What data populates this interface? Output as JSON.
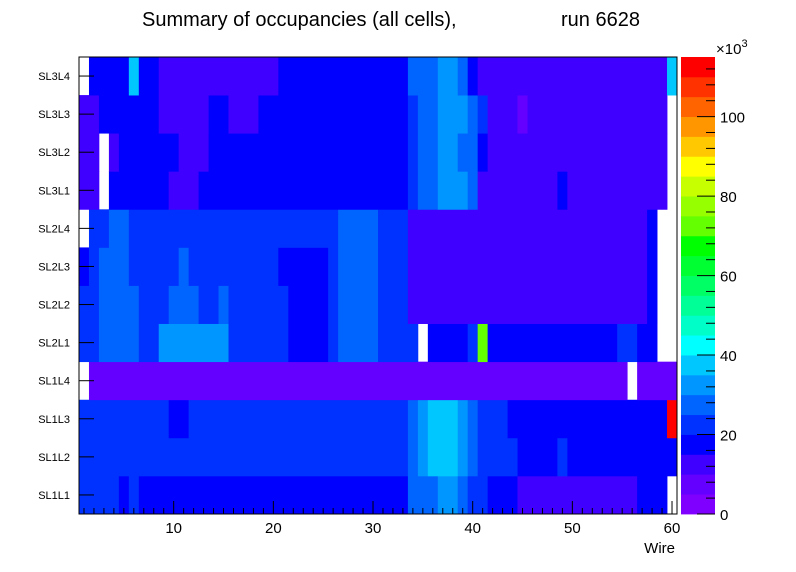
{
  "chart_data": {
    "type": "heatmap",
    "title": "Summary of occupancies (all cells),",
    "title_run": "run 6628",
    "xlabel": "Wire",
    "ylabel": "",
    "x_range": [
      0.5,
      60.5
    ],
    "x_ticks": [
      10,
      20,
      30,
      40,
      50,
      60
    ],
    "rows": [
      "SL1L1",
      "SL1L2",
      "SL1L3",
      "SL1L4",
      "SL2L1",
      "SL2L2",
      "SL2L3",
      "SL2L4",
      "SL3L1",
      "SL3L2",
      "SL3L3",
      "SL3L4"
    ],
    "z_range": [
      0,
      115000
    ],
    "z_exponent_label": "×10",
    "z_exponent": "3",
    "z_ticks": [
      0,
      20,
      40,
      60,
      80,
      100
    ],
    "palette": [
      "#8000ff",
      "#6400ff",
      "#4000ff",
      "#0000ff",
      "#0032ff",
      "#0064ff",
      "#0096ff",
      "#00c8ff",
      "#00ffff",
      "#00ffc8",
      "#00ff96",
      "#00ff64",
      "#00ff32",
      "#00ff00",
      "#64ff00",
      "#96ff00",
      "#c8ff00",
      "#ffff00",
      "#ffc800",
      "#ff9600",
      "#ff6400",
      "#ff3200",
      "#ff0000"
    ],
    "segments": {
      "SL1L1": [
        [
          1,
          4,
          21000
        ],
        [
          5,
          5,
          17000
        ],
        [
          6,
          6,
          21000
        ],
        [
          7,
          33,
          16000
        ],
        [
          34,
          36,
          26000
        ],
        [
          37,
          38,
          30000
        ],
        [
          39,
          39,
          26000
        ],
        [
          40,
          41,
          21000
        ],
        [
          42,
          44,
          16000
        ],
        [
          45,
          56,
          10000
        ],
        [
          57,
          59,
          17000
        ]
      ],
      "SL1L2": [
        [
          1,
          10,
          21000
        ],
        [
          11,
          33,
          21000
        ],
        [
          34,
          34,
          28000
        ],
        [
          35,
          35,
          33000
        ],
        [
          36,
          38,
          38000
        ],
        [
          39,
          39,
          33000
        ],
        [
          40,
          40,
          28000
        ],
        [
          41,
          44,
          21000
        ],
        [
          45,
          48,
          17000
        ],
        [
          49,
          49,
          21000
        ],
        [
          50,
          60,
          17000
        ]
      ],
      "SL1L3": [
        [
          1,
          9,
          21000
        ],
        [
          10,
          11,
          17000
        ],
        [
          12,
          33,
          21000
        ],
        [
          34,
          34,
          28000
        ],
        [
          35,
          35,
          33000
        ],
        [
          36,
          38,
          38000
        ],
        [
          39,
          39,
          33000
        ],
        [
          40,
          40,
          28000
        ],
        [
          41,
          43,
          21000
        ],
        [
          44,
          59,
          17000
        ],
        [
          60,
          60,
          114000
        ]
      ],
      "SL1L4": [
        [
          1,
          1,
          null
        ],
        [
          2,
          55,
          9000
        ],
        [
          56,
          56,
          null
        ],
        [
          57,
          60,
          9000
        ]
      ],
      "SL2L1": [
        [
          1,
          2,
          21000
        ],
        [
          3,
          6,
          28000
        ],
        [
          7,
          8,
          21000
        ],
        [
          9,
          15,
          32000
        ],
        [
          16,
          21,
          21000
        ],
        [
          22,
          25,
          17000
        ],
        [
          26,
          26,
          21000
        ],
        [
          27,
          30,
          28000
        ],
        [
          31,
          34,
          21000
        ],
        [
          35,
          35,
          null
        ],
        [
          36,
          39,
          17000
        ],
        [
          40,
          40,
          21000
        ],
        [
          41,
          41,
          74000
        ],
        [
          42,
          54,
          17000
        ],
        [
          55,
          56,
          21000
        ],
        [
          57,
          58,
          17000
        ],
        [
          59,
          60,
          null
        ]
      ],
      "SL2L2": [
        [
          1,
          2,
          21000
        ],
        [
          3,
          6,
          28000
        ],
        [
          7,
          9,
          21000
        ],
        [
          10,
          12,
          28000
        ],
        [
          13,
          14,
          21000
        ],
        [
          15,
          15,
          28000
        ],
        [
          16,
          21,
          21000
        ],
        [
          22,
          25,
          17000
        ],
        [
          26,
          26,
          21000
        ],
        [
          27,
          30,
          28000
        ],
        [
          31,
          33,
          21000
        ],
        [
          34,
          57,
          13000
        ],
        [
          58,
          58,
          17000
        ],
        [
          59,
          60,
          null
        ]
      ],
      "SL2L3": [
        [
          1,
          1,
          17000
        ],
        [
          2,
          2,
          21000
        ],
        [
          3,
          5,
          28000
        ],
        [
          6,
          10,
          21000
        ],
        [
          11,
          11,
          28000
        ],
        [
          12,
          20,
          21000
        ],
        [
          21,
          25,
          17000
        ],
        [
          26,
          26,
          21000
        ],
        [
          27,
          30,
          28000
        ],
        [
          31,
          33,
          21000
        ],
        [
          34,
          57,
          13000
        ],
        [
          58,
          58,
          17000
        ],
        [
          59,
          60,
          null
        ]
      ],
      "SL2L4": [
        [
          1,
          1,
          null
        ],
        [
          2,
          3,
          21000
        ],
        [
          4,
          5,
          28000
        ],
        [
          6,
          25,
          21000
        ],
        [
          26,
          26,
          21000
        ],
        [
          27,
          30,
          28000
        ],
        [
          31,
          33,
          21000
        ],
        [
          34,
          57,
          13000
        ],
        [
          58,
          58,
          17000
        ],
        [
          59,
          60,
          null
        ]
      ],
      "SL3L1": [
        [
          1,
          2,
          13000
        ],
        [
          3,
          3,
          null
        ],
        [
          4,
          9,
          17000
        ],
        [
          10,
          12,
          13000
        ],
        [
          13,
          33,
          17000
        ],
        [
          34,
          34,
          21000
        ],
        [
          35,
          36,
          26000
        ],
        [
          37,
          39,
          31000
        ],
        [
          40,
          40,
          26000
        ],
        [
          41,
          48,
          13000
        ],
        [
          49,
          49,
          17000
        ],
        [
          50,
          59,
          13000
        ],
        [
          60,
          60,
          null
        ]
      ],
      "SL3L2": [
        [
          1,
          2,
          13000
        ],
        [
          3,
          3,
          null
        ],
        [
          4,
          4,
          13000
        ],
        [
          5,
          10,
          17000
        ],
        [
          11,
          13,
          13000
        ],
        [
          14,
          33,
          17000
        ],
        [
          34,
          34,
          21000
        ],
        [
          35,
          36,
          26000
        ],
        [
          37,
          38,
          31000
        ],
        [
          39,
          39,
          28000
        ],
        [
          40,
          40,
          26000
        ],
        [
          41,
          41,
          17000
        ],
        [
          42,
          59,
          13000
        ],
        [
          60,
          60,
          null
        ]
      ],
      "SL3L3": [
        [
          1,
          2,
          13000
        ],
        [
          3,
          3,
          17000
        ],
        [
          4,
          8,
          17000
        ],
        [
          9,
          13,
          13000
        ],
        [
          14,
          15,
          17000
        ],
        [
          16,
          18,
          13000
        ],
        [
          19,
          33,
          17000
        ],
        [
          34,
          34,
          21000
        ],
        [
          35,
          36,
          26000
        ],
        [
          37,
          39,
          31000
        ],
        [
          40,
          40,
          26000
        ],
        [
          41,
          41,
          21000
        ],
        [
          42,
          44,
          13000
        ],
        [
          45,
          45,
          9000
        ],
        [
          46,
          59,
          13000
        ],
        [
          60,
          60,
          null
        ]
      ],
      "SL3L4": [
        [
          1,
          1,
          null
        ],
        [
          2,
          5,
          17000
        ],
        [
          6,
          6,
          38000
        ],
        [
          7,
          8,
          17000
        ],
        [
          9,
          20,
          13000
        ],
        [
          21,
          33,
          17000
        ],
        [
          34,
          36,
          26000
        ],
        [
          37,
          38,
          31000
        ],
        [
          39,
          39,
          26000
        ],
        [
          40,
          40,
          17000
        ],
        [
          41,
          59,
          13000
        ],
        [
          60,
          60,
          38000
        ]
      ]
    }
  }
}
